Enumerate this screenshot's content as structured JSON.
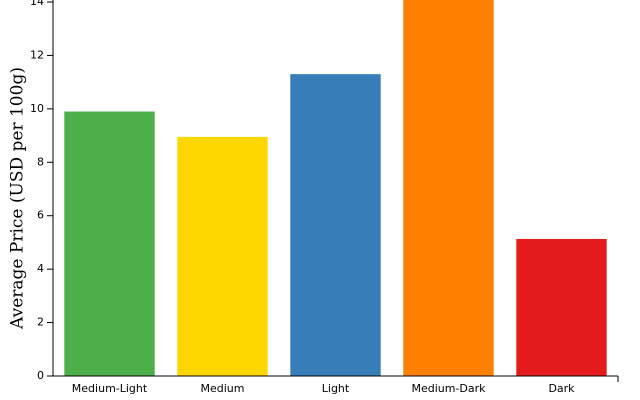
{
  "chart_data": {
    "type": "bar",
    "y_label": "Average Price (USD per 100g)",
    "categories": [
      "Medium-Light",
      "Medium",
      "Light",
      "Medium-Dark",
      "Dark"
    ],
    "values": [
      9.9,
      8.95,
      11.3,
      14.3,
      5.13
    ],
    "colors": [
      "#4daf4a",
      "#ffd700",
      "#377eb8",
      "#ff7f00",
      "#e41a1c"
    ],
    "ylim": [
      0,
      14
    ],
    "yticks": [
      0,
      2,
      4,
      6,
      8,
      10,
      12,
      14
    ]
  }
}
